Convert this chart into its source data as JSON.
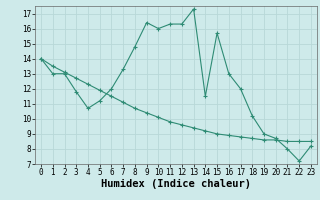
{
  "xlabel": "Humidex (Indice chaleur)",
  "x_ticks": [
    0,
    1,
    2,
    3,
    4,
    5,
    6,
    7,
    8,
    9,
    10,
    11,
    12,
    13,
    14,
    15,
    16,
    17,
    18,
    19,
    20,
    21,
    22,
    23
  ],
  "ylim": [
    7,
    17.5
  ],
  "xlim": [
    -0.5,
    23.5
  ],
  "yticks": [
    7,
    8,
    9,
    10,
    11,
    12,
    13,
    14,
    15,
    16,
    17
  ],
  "line1_x": [
    0,
    1,
    2,
    3,
    4,
    5,
    6,
    7,
    8,
    9,
    10,
    11,
    12,
    13,
    14,
    15,
    16,
    17,
    18,
    19,
    20,
    21,
    22,
    23
  ],
  "line1_y": [
    14.0,
    13.0,
    13.0,
    11.8,
    10.7,
    11.2,
    12.0,
    13.3,
    14.8,
    16.4,
    16.0,
    16.3,
    16.3,
    17.3,
    11.5,
    15.7,
    13.0,
    12.0,
    10.2,
    9.0,
    8.7,
    8.0,
    7.2,
    8.2
  ],
  "line2_x": [
    0,
    1,
    2,
    3,
    4,
    5,
    6,
    7,
    8,
    9,
    10,
    11,
    12,
    13,
    14,
    15,
    16,
    17,
    18,
    19,
    20,
    21,
    22,
    23
  ],
  "line2_y": [
    14.0,
    13.5,
    13.1,
    12.7,
    12.3,
    11.9,
    11.5,
    11.1,
    10.7,
    10.4,
    10.1,
    9.8,
    9.6,
    9.4,
    9.2,
    9.0,
    8.9,
    8.8,
    8.7,
    8.6,
    8.6,
    8.5,
    8.5,
    8.5
  ],
  "line_color": "#2e8b74",
  "bg_color": "#ceeaea",
  "grid_color": "#b8d8d8",
  "tick_label_fontsize": 5.5,
  "axis_label_fontsize": 7.5
}
